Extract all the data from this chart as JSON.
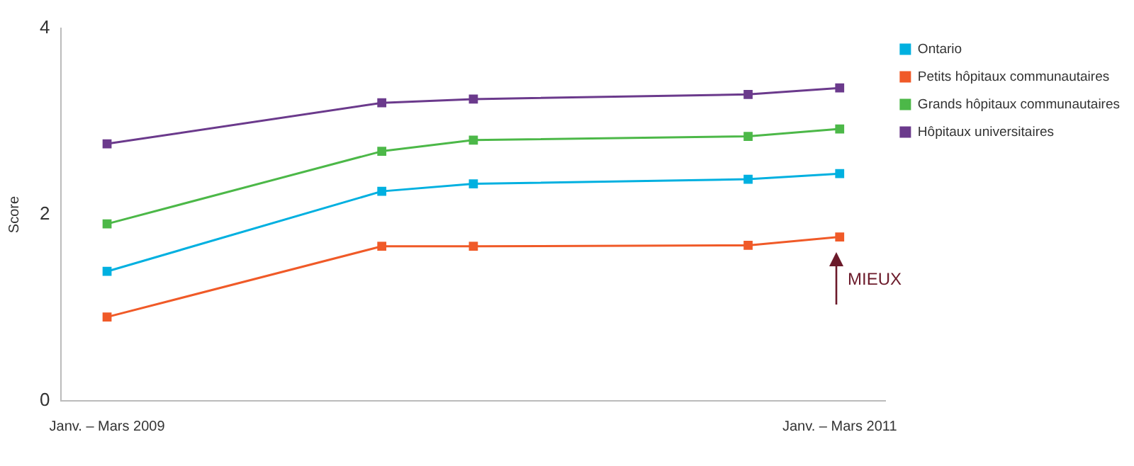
{
  "chart_data": {
    "type": "line",
    "ylabel": "Score",
    "categories": [
      "Janv. – Mars 2009",
      null,
      null,
      null,
      null,
      null,
      null,
      null,
      "Janv. – Mars 2011"
    ],
    "series": [
      {
        "name": "Ontario",
        "color": "#00b0e0",
        "values": [
          1.39,
          null,
          null,
          2.25,
          2.33,
          null,
          null,
          2.38,
          2.44
        ]
      },
      {
        "name": "Petits hôpitaux communautaires",
        "color": "#f05a28",
        "values": [
          0.9,
          null,
          null,
          1.66,
          1.66,
          null,
          null,
          1.67,
          1.76
        ]
      },
      {
        "name": "Grands hôpitaux communautaires",
        "color": "#4cb848",
        "values": [
          1.9,
          null,
          null,
          2.68,
          2.8,
          null,
          null,
          2.84,
          2.92
        ]
      },
      {
        "name": "Hôpitaux universitaires",
        "color": "#6b3a8c",
        "values": [
          2.76,
          null,
          null,
          3.2,
          3.24,
          null,
          null,
          3.29,
          3.36
        ]
      }
    ],
    "ylim": [
      0,
      4
    ],
    "yticks": [
      0,
      2,
      4
    ],
    "grid": false,
    "legend": "top right",
    "marker": "square",
    "line_style": "solid",
    "annotations": [
      "MIEUX"
    ]
  }
}
